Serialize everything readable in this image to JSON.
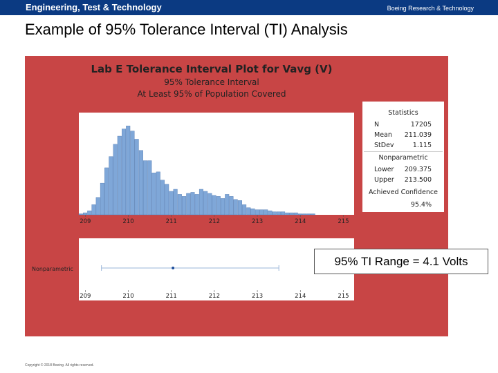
{
  "header": {
    "org": "Engineering, Test & Technology",
    "dept": "Boeing Research & Technology"
  },
  "slide_title": "Example of 95% Tolerance Interval (TI) Analysis",
  "callout": "95% TI Range = 4.1 Volts",
  "copyright": "Copyright © 2018 Boeing. All rights reserved.",
  "colors": {
    "panel": "#c84545",
    "bar": "#7fa7d8",
    "bar_edge": "#4f78b0",
    "interval": "#9ab6d8",
    "point": "#1e4f9c",
    "header_bg": "#0b3a82"
  },
  "chart_data": {
    "type": "bar",
    "title": "Lab E Tolerance Interval Plot for Vavg (V)",
    "subtitle1": "95% Tolerance Interval",
    "subtitle2": "At Least 95% of Population Covered",
    "xlim": [
      208.85,
      215.25
    ],
    "ylim": [
      0,
      1
    ],
    "xticks": [
      209,
      210,
      211,
      212,
      213,
      214,
      215
    ],
    "bin_start": 208.85,
    "bin_width": 0.1,
    "values": [
      0.01,
      0.02,
      0.04,
      0.1,
      0.17,
      0.31,
      0.46,
      0.57,
      0.69,
      0.77,
      0.84,
      0.87,
      0.82,
      0.74,
      0.63,
      0.53,
      0.53,
      0.41,
      0.42,
      0.34,
      0.3,
      0.23,
      0.25,
      0.2,
      0.18,
      0.21,
      0.22,
      0.2,
      0.25,
      0.23,
      0.21,
      0.19,
      0.18,
      0.16,
      0.2,
      0.18,
      0.15,
      0.14,
      0.1,
      0.07,
      0.06,
      0.05,
      0.05,
      0.05,
      0.04,
      0.03,
      0.03,
      0.03,
      0.02,
      0.02,
      0.02,
      0.01,
      0.01,
      0.01,
      0.01,
      0.0,
      0.0,
      0.0,
      0.0,
      0.0,
      0.0,
      0.0
    ],
    "statistics": {
      "heading": "Statistics",
      "rows": [
        {
          "label": "N",
          "value": "17205"
        },
        {
          "label": "Mean",
          "value": "211.039"
        },
        {
          "label": "StDev",
          "value": "1.115"
        }
      ],
      "np_heading": "Nonparametric",
      "np_rows": [
        {
          "label": "Lower",
          "value": "209.375"
        },
        {
          "label": "Upper",
          "value": "213.500"
        }
      ],
      "conf_label": "Achieved Confidence",
      "conf_value": "95.4%"
    },
    "interval": {
      "label": "Nonparametric",
      "lower": 209.375,
      "upper": 213.5,
      "point": 211.039
    }
  }
}
